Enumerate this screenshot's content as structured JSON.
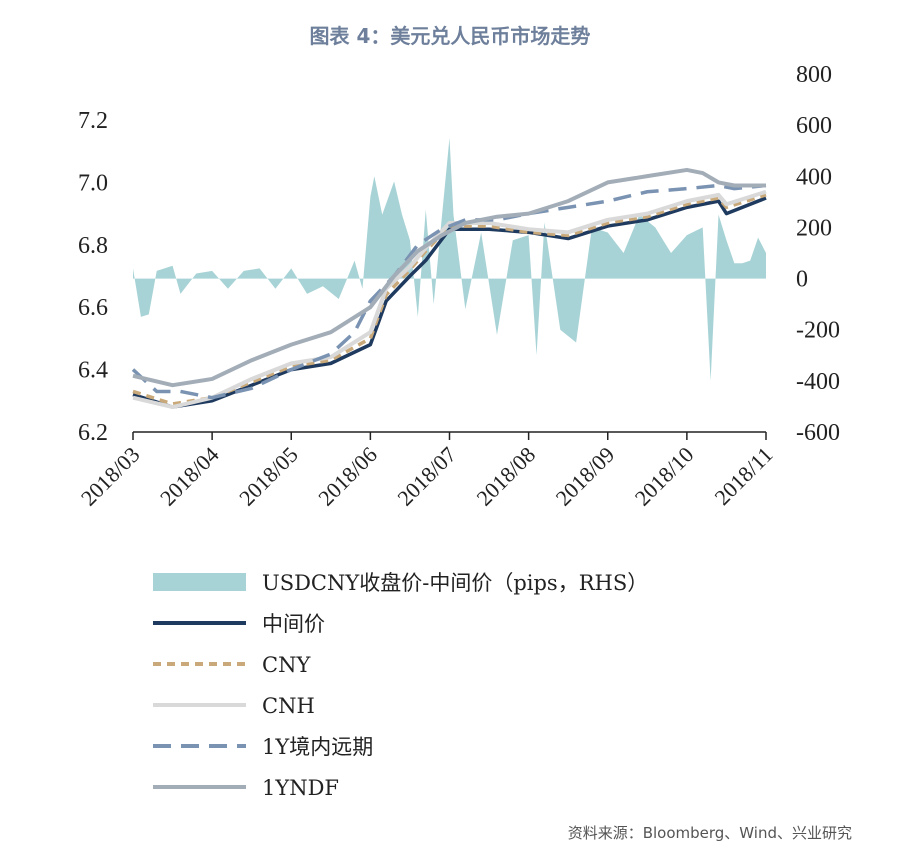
{
  "title": "图表 4：美元兑人民币市场走势",
  "source": "资料来源：Bloomberg、Wind、兴业研究",
  "chart_data": {
    "type": "line",
    "x_categories": [
      "2018/03",
      "2018/04",
      "2018/05",
      "2018/06",
      "2018/07",
      "2018/08",
      "2018/09",
      "2018/10",
      "2018/11"
    ],
    "y_left": {
      "ticks": [
        "7.2",
        "7.0",
        "6.8",
        "6.6",
        "6.4",
        "6.2"
      ],
      "ylim": [
        6.2,
        7.2
      ]
    },
    "y_right": {
      "ticks": [
        "800",
        "600",
        "400",
        "200",
        "0",
        "-200",
        "-400",
        "-600"
      ],
      "ylim": [
        -600,
        800
      ]
    },
    "series": [
      {
        "name": "USDCNY收盘价-中间价（pips，RHS）",
        "style": "area",
        "axis": "right",
        "color": "#a8d3d6",
        "t": [
          0,
          0.1,
          0.2,
          0.3,
          0.5,
          0.6,
          0.8,
          1.0,
          1.2,
          1.4,
          1.6,
          1.8,
          2.0,
          2.2,
          2.4,
          2.6,
          2.8,
          2.9,
          3.0,
          3.05,
          3.15,
          3.3,
          3.4,
          3.5,
          3.6,
          3.7,
          3.8,
          3.9,
          4.0,
          4.05,
          4.2,
          4.4,
          4.6,
          4.8,
          5.0,
          5.1,
          5.2,
          5.4,
          5.6,
          5.8,
          6.0,
          6.2,
          6.4,
          6.6,
          6.8,
          7.0,
          7.2,
          7.3,
          7.4,
          7.5,
          7.6,
          7.7,
          7.8,
          7.9,
          8.0
        ],
        "v": [
          40,
          -150,
          -140,
          30,
          50,
          -60,
          20,
          30,
          -40,
          30,
          40,
          -40,
          40,
          -60,
          -30,
          -80,
          70,
          -40,
          320,
          400,
          250,
          380,
          250,
          150,
          -150,
          270,
          -100,
          230,
          550,
          250,
          -120,
          180,
          -220,
          150,
          170,
          -300,
          220,
          -200,
          -250,
          200,
          180,
          100,
          250,
          200,
          100,
          170,
          200,
          -400,
          250,
          150,
          60,
          60,
          70,
          160,
          100
        ]
      },
      {
        "name": "中间价",
        "style": "line-solid",
        "axis": "left",
        "color": "#1f3a5f",
        "t": [
          0,
          0.5,
          1.0,
          1.5,
          2.0,
          2.5,
          3.0,
          3.2,
          3.5,
          3.7,
          4.0,
          4.5,
          5.0,
          5.5,
          6.0,
          6.5,
          7.0,
          7.4,
          7.5,
          8.0
        ],
        "v": [
          6.32,
          6.28,
          6.3,
          6.35,
          6.4,
          6.42,
          6.48,
          6.62,
          6.7,
          6.75,
          6.85,
          6.85,
          6.84,
          6.82,
          6.86,
          6.88,
          6.92,
          6.94,
          6.9,
          6.95
        ]
      },
      {
        "name": "CNY",
        "style": "line-dashed",
        "axis": "left",
        "color": "#c9a979",
        "t": [
          0,
          0.5,
          1.0,
          1.5,
          2.0,
          2.5,
          3.0,
          3.2,
          3.5,
          3.7,
          4.0,
          4.5,
          5.0,
          5.5,
          6.0,
          6.5,
          7.0,
          7.4,
          7.5,
          8.0
        ],
        "v": [
          6.33,
          6.29,
          6.31,
          6.36,
          6.41,
          6.43,
          6.5,
          6.64,
          6.72,
          6.78,
          6.86,
          6.86,
          6.84,
          6.83,
          6.87,
          6.89,
          6.93,
          6.95,
          6.92,
          6.96
        ]
      },
      {
        "name": "CNH",
        "style": "line-solid",
        "axis": "left",
        "color": "#d9d9d9",
        "t": [
          0,
          0.5,
          1.0,
          1.5,
          2.0,
          2.5,
          3.0,
          3.2,
          3.5,
          3.7,
          4.0,
          4.5,
          5.0,
          5.5,
          6.0,
          6.5,
          7.0,
          7.4,
          7.5,
          8.0
        ],
        "v": [
          6.31,
          6.28,
          6.31,
          6.37,
          6.42,
          6.44,
          6.52,
          6.66,
          6.73,
          6.79,
          6.87,
          6.87,
          6.85,
          6.84,
          6.88,
          6.9,
          6.94,
          6.96,
          6.93,
          6.97
        ]
      },
      {
        "name": "1Y境内远期",
        "style": "line-dashed-long",
        "axis": "left",
        "color": "#7a93b2",
        "t": [
          0,
          0.3,
          0.6,
          1.0,
          1.5,
          2.0,
          2.5,
          2.8,
          3.0,
          3.3,
          3.6,
          3.9,
          4.2,
          4.6,
          5.0,
          5.5,
          6.0,
          6.5,
          7.0,
          7.4,
          7.6,
          8.0
        ],
        "v": [
          6.4,
          6.33,
          6.33,
          6.31,
          6.34,
          6.4,
          6.45,
          6.52,
          6.62,
          6.7,
          6.8,
          6.85,
          6.88,
          6.88,
          6.9,
          6.92,
          6.94,
          6.97,
          6.98,
          6.99,
          6.98,
          6.99
        ]
      },
      {
        "name": "1YNDF",
        "style": "line-solid-thick",
        "axis": "left",
        "color": "#a3adb8",
        "t": [
          0,
          0.5,
          1.0,
          1.5,
          2.0,
          2.5,
          3.0,
          3.3,
          3.6,
          3.9,
          4.2,
          4.6,
          5.0,
          5.5,
          6.0,
          6.5,
          7.0,
          7.2,
          7.4,
          7.6,
          8.0
        ],
        "v": [
          6.38,
          6.35,
          6.37,
          6.43,
          6.48,
          6.52,
          6.6,
          6.7,
          6.78,
          6.83,
          6.87,
          6.89,
          6.9,
          6.94,
          7.0,
          7.02,
          7.04,
          7.03,
          7.0,
          6.99,
          6.99
        ]
      }
    ]
  }
}
